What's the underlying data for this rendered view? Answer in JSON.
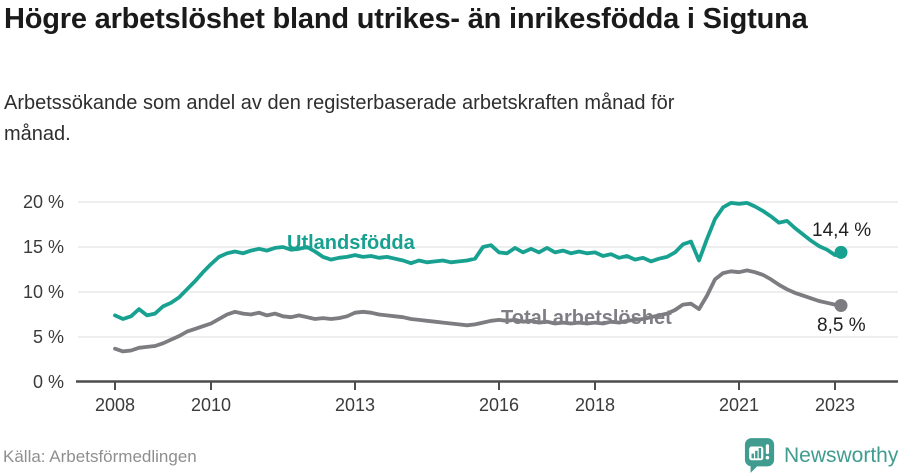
{
  "chart_data": {
    "type": "line",
    "title": "Högre arbetslöshet bland utrikes- än inrikesfödda i Sigtuna",
    "subtitle": "Arbetssökande som andel av den registerbaserade arbetskraften månad för månad.",
    "grid": "horizontal",
    "legend": "inline-labels-on-lines",
    "y_axis": {
      "unit": "%",
      "range": [
        0,
        20
      ],
      "ticks": [
        0,
        5,
        10,
        15,
        20
      ],
      "tick_labels": [
        "0 %",
        "5 %",
        "10 %",
        "15 %",
        "20 %"
      ]
    },
    "x_axis": {
      "range_years": [
        2007.2,
        2023.35
      ],
      "ticks": [
        2008,
        2010,
        2013,
        2016,
        2018,
        2021,
        2023
      ],
      "tick_labels": [
        "2008",
        "2010",
        "2013",
        "2016",
        "2018",
        "2021",
        "2023"
      ]
    },
    "sampling": {
      "start_year": 2008.0,
      "step_months": 2
    },
    "series": [
      {
        "name": "Utlandsfödda",
        "color": "#18a190",
        "values": [
          7.4,
          7.0,
          7.3,
          8.1,
          7.4,
          7.6,
          8.4,
          8.8,
          9.4,
          10.3,
          11.2,
          12.2,
          13.1,
          13.9,
          14.3,
          14.5,
          14.3,
          14.6,
          14.8,
          14.6,
          14.9,
          15.0,
          14.7,
          14.8,
          15.0,
          14.5,
          13.9,
          13.6,
          13.8,
          13.9,
          14.1,
          13.9,
          14.0,
          13.8,
          13.9,
          13.7,
          13.5,
          13.2,
          13.5,
          13.3,
          13.4,
          13.5,
          13.3,
          13.4,
          13.5,
          13.7,
          15.0,
          15.2,
          14.4,
          14.3,
          14.9,
          14.4,
          14.8,
          14.4,
          14.9,
          14.4,
          14.6,
          14.3,
          14.5,
          14.3,
          14.4,
          14.0,
          14.2,
          13.8,
          14.0,
          13.6,
          13.8,
          13.4,
          13.7,
          13.9,
          14.4,
          15.3,
          15.6,
          13.5,
          15.9,
          18.1,
          19.4,
          19.9,
          19.8,
          19.9,
          19.5,
          19.0,
          18.4,
          17.7,
          17.9,
          17.1,
          16.4,
          15.7,
          15.1,
          14.7,
          14.1
        ],
        "end_point": {
          "x": 2023.125,
          "value": 14.4,
          "label": "14,4 %"
        }
      },
      {
        "name": "Total arbetslöshet",
        "color": "#7c7c81",
        "values": [
          3.7,
          3.4,
          3.5,
          3.8,
          3.9,
          4.0,
          4.3,
          4.7,
          5.1,
          5.6,
          5.9,
          6.2,
          6.5,
          7.0,
          7.5,
          7.8,
          7.6,
          7.5,
          7.7,
          7.4,
          7.6,
          7.3,
          7.2,
          7.4,
          7.2,
          7.0,
          7.1,
          7.0,
          7.1,
          7.3,
          7.7,
          7.8,
          7.7,
          7.5,
          7.4,
          7.3,
          7.2,
          7.0,
          6.9,
          6.8,
          6.7,
          6.6,
          6.5,
          6.4,
          6.3,
          6.4,
          6.6,
          6.8,
          6.9,
          6.8,
          6.9,
          6.7,
          6.8,
          6.6,
          6.7,
          6.5,
          6.6,
          6.5,
          6.6,
          6.5,
          6.6,
          6.5,
          6.7,
          6.6,
          6.8,
          6.9,
          7.0,
          7.2,
          7.4,
          7.6,
          8.0,
          8.6,
          8.7,
          8.1,
          9.6,
          11.4,
          12.1,
          12.3,
          12.2,
          12.4,
          12.2,
          11.9,
          11.4,
          10.8,
          10.3,
          9.9,
          9.6,
          9.3,
          9.0,
          8.8,
          8.6
        ],
        "end_point": {
          "x": 2023.125,
          "value": 8.5,
          "label": "8,5 %"
        }
      }
    ]
  },
  "footer": {
    "source": "Källa: Arbetsförmedlingen",
    "brand": "Newsworthy"
  },
  "colors": {
    "accent_teal": "#18a190",
    "series_gray": "#7c7c81",
    "gridline": "#e4e4e4",
    "axis": "#4d4d4d",
    "brand_teal": "#3f9c8f"
  }
}
